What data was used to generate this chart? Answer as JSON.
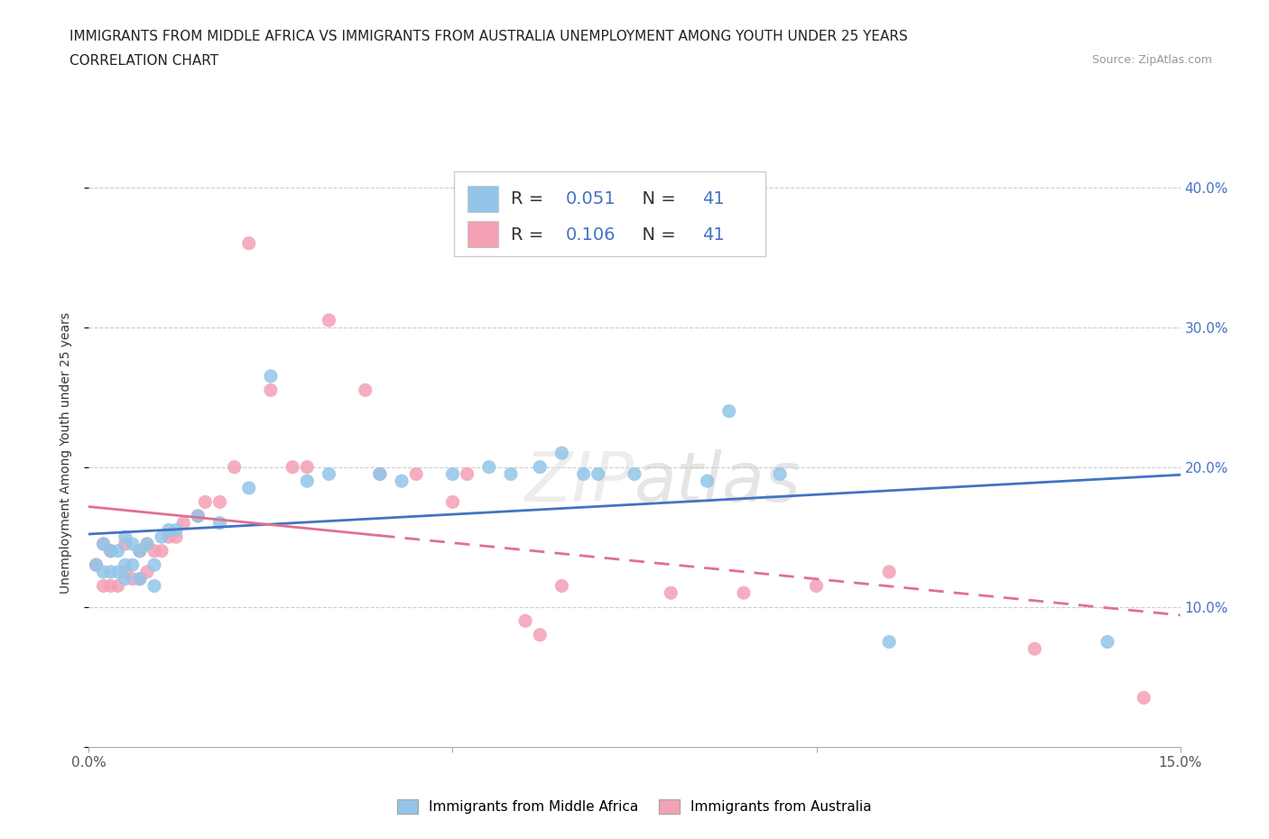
{
  "title_line1": "IMMIGRANTS FROM MIDDLE AFRICA VS IMMIGRANTS FROM AUSTRALIA UNEMPLOYMENT AMONG YOUTH UNDER 25 YEARS",
  "title_line2": "CORRELATION CHART",
  "source_text": "Source: ZipAtlas.com",
  "ylabel": "Unemployment Among Youth under 25 years",
  "xlim": [
    0.0,
    0.15
  ],
  "ylim": [
    0.0,
    0.42
  ],
  "xtick_positions": [
    0.0,
    0.05,
    0.1,
    0.15
  ],
  "xtick_labels": [
    "0.0%",
    "",
    "",
    "15.0%"
  ],
  "ytick_positions": [
    0.0,
    0.1,
    0.2,
    0.3,
    0.4
  ],
  "ytick_labels_right": [
    "",
    "10.0%",
    "20.0%",
    "30.0%",
    "40.0%"
  ],
  "color_blue": "#92C5E8",
  "color_pink": "#F4A0B5",
  "color_blue_line": "#4472C4",
  "color_pink_line": "#E07090",
  "R_blue": 0.051,
  "N_blue": 41,
  "R_pink": 0.106,
  "N_pink": 41,
  "legend_label_blue": "Immigrants from Middle Africa",
  "legend_label_pink": "Immigrants from Australia",
  "watermark": "ZIPatlas",
  "blue_scatter_x": [
    0.001,
    0.002,
    0.002,
    0.003,
    0.003,
    0.004,
    0.004,
    0.005,
    0.005,
    0.005,
    0.006,
    0.006,
    0.007,
    0.007,
    0.008,
    0.009,
    0.009,
    0.01,
    0.011,
    0.012,
    0.015,
    0.018,
    0.022,
    0.025,
    0.03,
    0.033,
    0.04,
    0.043,
    0.05,
    0.055,
    0.058,
    0.062,
    0.065,
    0.068,
    0.07,
    0.075,
    0.085,
    0.088,
    0.095,
    0.11,
    0.14
  ],
  "blue_scatter_y": [
    0.13,
    0.145,
    0.125,
    0.14,
    0.125,
    0.14,
    0.125,
    0.15,
    0.13,
    0.12,
    0.13,
    0.145,
    0.14,
    0.12,
    0.145,
    0.13,
    0.115,
    0.15,
    0.155,
    0.155,
    0.165,
    0.16,
    0.185,
    0.265,
    0.19,
    0.195,
    0.195,
    0.19,
    0.195,
    0.2,
    0.195,
    0.2,
    0.21,
    0.195,
    0.195,
    0.195,
    0.19,
    0.24,
    0.195,
    0.075,
    0.075
  ],
  "pink_scatter_x": [
    0.001,
    0.002,
    0.002,
    0.003,
    0.003,
    0.004,
    0.005,
    0.005,
    0.006,
    0.007,
    0.007,
    0.008,
    0.008,
    0.009,
    0.01,
    0.011,
    0.012,
    0.013,
    0.015,
    0.016,
    0.018,
    0.02,
    0.022,
    0.025,
    0.028,
    0.03,
    0.033,
    0.038,
    0.04,
    0.045,
    0.05,
    0.052,
    0.06,
    0.062,
    0.065,
    0.08,
    0.09,
    0.1,
    0.11,
    0.13,
    0.145
  ],
  "pink_scatter_y": [
    0.13,
    0.145,
    0.115,
    0.14,
    0.115,
    0.115,
    0.145,
    0.125,
    0.12,
    0.14,
    0.12,
    0.145,
    0.125,
    0.14,
    0.14,
    0.15,
    0.15,
    0.16,
    0.165,
    0.175,
    0.175,
    0.2,
    0.36,
    0.255,
    0.2,
    0.2,
    0.305,
    0.255,
    0.195,
    0.195,
    0.175,
    0.195,
    0.09,
    0.08,
    0.115,
    0.11,
    0.11,
    0.115,
    0.125,
    0.07,
    0.035
  ],
  "grid_color": "#CCCCCC",
  "background_color": "#FFFFFF",
  "title_fontsize": 11,
  "axis_label_fontsize": 10
}
